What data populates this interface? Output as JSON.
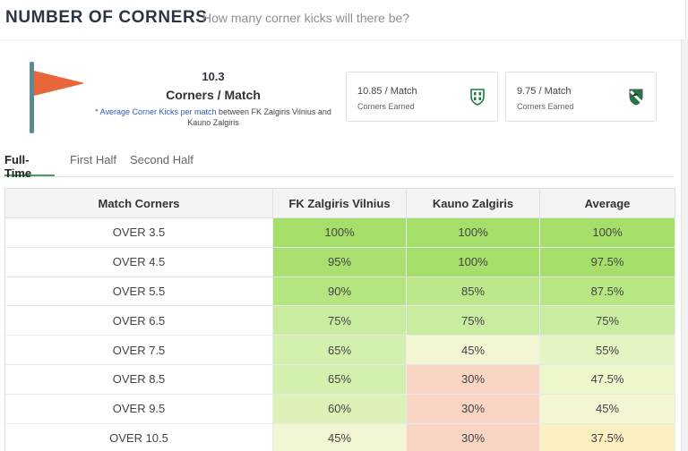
{
  "header": {
    "title": "NUMBER OF CORNERS",
    "subtitle": "How many corner kicks will there be?"
  },
  "summary": {
    "value": "10.3",
    "label": "Corners / Match",
    "desc_highlight": "* Average Corner Kicks per match",
    "desc_rest": " between FK Zalgiris Vilnius and Kauno Zalgiris",
    "flag_color": "#e8673a",
    "pole_color": "#5b8a94"
  },
  "cards": [
    {
      "value": "10.85 / Match",
      "label": "Corners Earned",
      "team": "FK Zalgiris Vilnius",
      "icon": "team-crest-icon"
    },
    {
      "value": "9.75 / Match",
      "label": "Corners Earned",
      "team": "Kauno Zalgiris",
      "icon": "team-crest-icon"
    }
  ],
  "tabs": [
    {
      "label": "Full-Time",
      "active": true
    },
    {
      "label": "First Half",
      "active": false
    },
    {
      "label": "Second Half",
      "active": false
    }
  ],
  "table": {
    "headers": [
      "Match Corners",
      "FK Zalgiris Vilnius",
      "Kauno Zalgiris",
      "Average"
    ],
    "rows": [
      {
        "label": "OVER 3.5",
        "cells": [
          {
            "text": "100%",
            "value": 100
          },
          {
            "text": "100%",
            "value": 100
          },
          {
            "text": "100%",
            "value": 100
          }
        ]
      },
      {
        "label": "OVER 4.5",
        "cells": [
          {
            "text": "95%",
            "value": 95
          },
          {
            "text": "100%",
            "value": 100
          },
          {
            "text": "97.5%",
            "value": 97.5
          }
        ]
      },
      {
        "label": "OVER 5.5",
        "cells": [
          {
            "text": "90%",
            "value": 90
          },
          {
            "text": "85%",
            "value": 85
          },
          {
            "text": "87.5%",
            "value": 87.5
          }
        ]
      },
      {
        "label": "OVER 6.5",
        "cells": [
          {
            "text": "75%",
            "value": 75
          },
          {
            "text": "75%",
            "value": 75
          },
          {
            "text": "75%",
            "value": 75
          }
        ]
      },
      {
        "label": "OVER 7.5",
        "cells": [
          {
            "text": "65%",
            "value": 65
          },
          {
            "text": "45%",
            "value": 45
          },
          {
            "text": "55%",
            "value": 55
          }
        ]
      },
      {
        "label": "OVER 8.5",
        "cells": [
          {
            "text": "65%",
            "value": 65
          },
          {
            "text": "30%",
            "value": 30
          },
          {
            "text": "47.5%",
            "value": 47.5
          }
        ]
      },
      {
        "label": "OVER 9.5",
        "cells": [
          {
            "text": "60%",
            "value": 60
          },
          {
            "text": "30%",
            "value": 30
          },
          {
            "text": "45%",
            "value": 45
          }
        ]
      },
      {
        "label": "OVER 10.5",
        "cells": [
          {
            "text": "45%",
            "value": 45
          },
          {
            "text": "30%",
            "value": 30
          },
          {
            "text": "37.5%",
            "value": 37.5
          }
        ]
      }
    ]
  },
  "colors": {
    "accent_tab": "#4a9d5b",
    "heat": {
      "100": "#a5df6a",
      "97.5": "#a5df6a",
      "95": "#a9e06f",
      "90": "#b4e57f",
      "87.5": "#b7e683",
      "85": "#bde78b",
      "75": "#c9eca1",
      "65": "#d4f0ae",
      "60": "#dcf2b8",
      "55": "#e5f4c3",
      "47.5": "#eef6cc",
      "45": "#f2f6d2",
      "37.5": "#fbf0bf",
      "30": "#f9d6c3"
    }
  }
}
